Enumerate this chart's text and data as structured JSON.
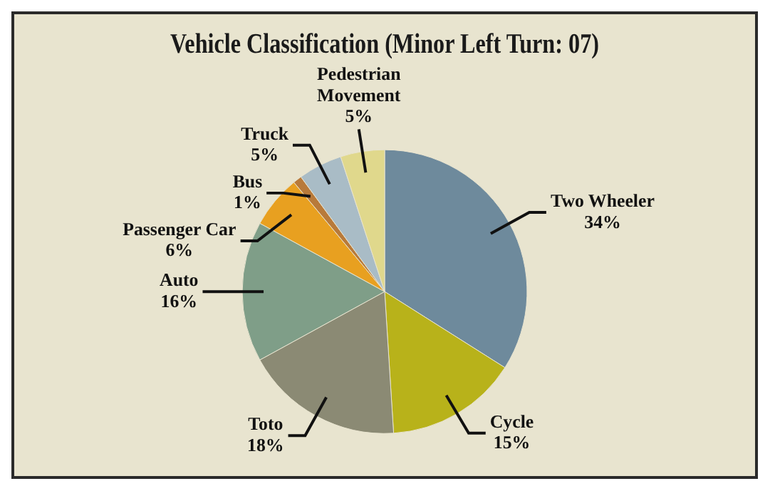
{
  "chart_data": {
    "type": "pie",
    "title": "Vehicle Classification (Minor Left Turn: 07)",
    "categories": [
      "Two Wheeler",
      "Cycle",
      "Toto",
      "Auto",
      "Passenger Car",
      "Bus",
      "Truck",
      "Pedestrian Movement"
    ],
    "values": [
      34,
      15,
      18,
      16,
      6,
      1,
      5,
      5
    ],
    "value_labels": [
      "34%",
      "15%",
      "18%",
      "16%",
      "6%",
      "1%",
      "5%",
      "5%"
    ],
    "colors": [
      "#6e8a9c",
      "#b8b21a",
      "#8b8a74",
      "#7f9e88",
      "#e8a020",
      "#b87a3a",
      "#a9bcc6",
      "#e0d88c"
    ],
    "legend": false
  }
}
